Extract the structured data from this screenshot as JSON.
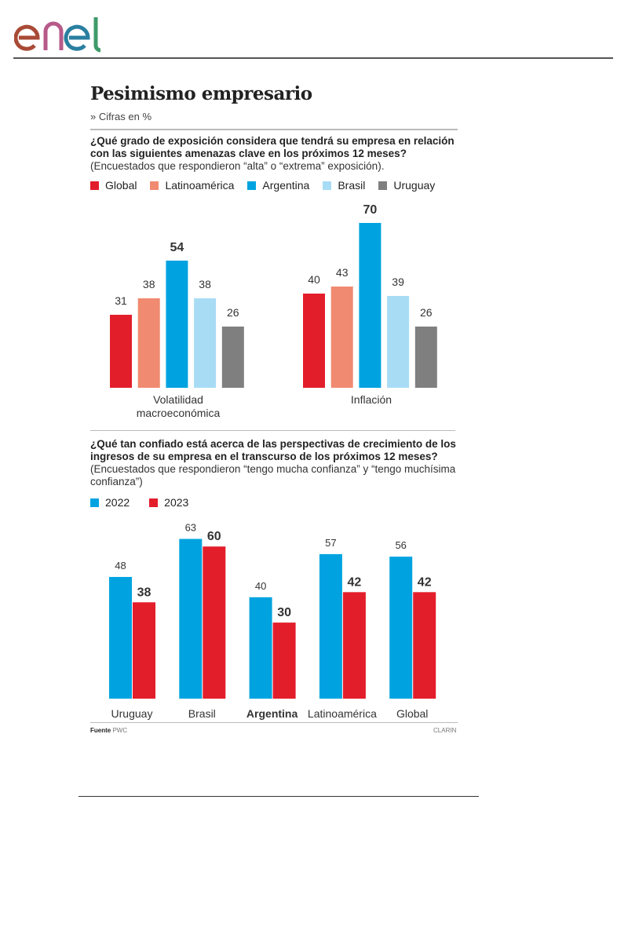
{
  "header": {
    "logo_text": "enel"
  },
  "title": "Pesimismo empresario",
  "subtitle": "» Cifras en %",
  "footer": {
    "source_label": "Fuente",
    "source": "PWC",
    "credit": "CLARIN"
  },
  "chart_data": [
    {
      "type": "bar",
      "question": "¿Qué grado de exposición considera que tendrá su empresa en relación con las siguientes amenazas clave en los próximos 12 meses?",
      "note": "(Encuestados que respondieron “alta” o “extrema” exposición).",
      "categories": [
        "Volatilidad macroeconómica",
        "Inflación"
      ],
      "series": [
        {
          "name": "Global",
          "color": "#e31e2b",
          "values": [
            31,
            40
          ]
        },
        {
          "name": "Latinoamérica",
          "color": "#f08a70",
          "values": [
            38,
            43
          ]
        },
        {
          "name": "Argentina",
          "color": "#00a3e0",
          "values": [
            54,
            70
          ]
        },
        {
          "name": "Brasil",
          "color": "#a8dcf5",
          "values": [
            38,
            39
          ]
        },
        {
          "name": "Uruguay",
          "color": "#7f7f7f",
          "values": [
            26,
            26
          ]
        }
      ],
      "highlight_series": "Argentina",
      "ylim": [
        0,
        70
      ],
      "grid": false,
      "legend": "top-left"
    },
    {
      "type": "bar",
      "question": "¿Qué tan confiado está acerca de las perspectivas de crecimiento de los ingresos de su empresa en el transcurso de los próximos 12 meses?",
      "note": "(Encuestados que respondieron “tengo mucha confianza” y “tengo muchísima confianza”)",
      "categories": [
        "Uruguay",
        "Brasil",
        "Argentina",
        "Latinoamérica",
        "Global"
      ],
      "series": [
        {
          "name": "2022",
          "color": "#00a3e0",
          "values": [
            48,
            63,
            40,
            57,
            56
          ]
        },
        {
          "name": "2023",
          "color": "#e31e2b",
          "values": [
            38,
            60,
            30,
            42,
            42
          ]
        }
      ],
      "highlight_category": "Argentina",
      "ylim": [
        0,
        63
      ],
      "grid": false,
      "legend": "top-left"
    }
  ]
}
